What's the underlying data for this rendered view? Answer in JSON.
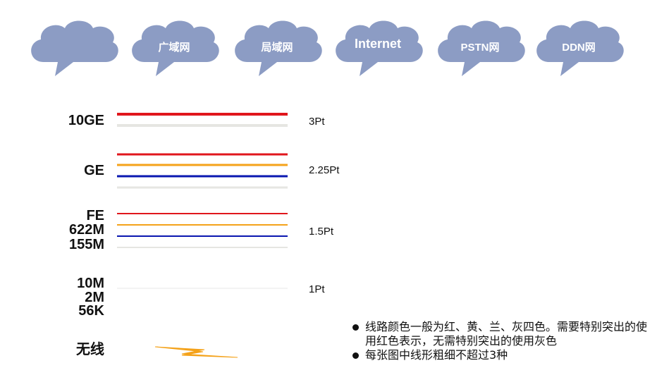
{
  "clouds": [
    {
      "label": "",
      "color": "#8c9cc4"
    },
    {
      "label": "广域网",
      "color": "#8c9cc4"
    },
    {
      "label": "局域网",
      "color": "#8c9cc4"
    },
    {
      "label": "Internet",
      "color": "#8c9cc4"
    },
    {
      "label": "PSTN网",
      "color": "#8c9cc4"
    },
    {
      "label": "DDN网",
      "color": "#8c9cc4"
    }
  ],
  "rows": [
    {
      "labels": [
        "10GE"
      ],
      "weight": "3Pt",
      "lines": [
        {
          "color_name": "red",
          "color": "#e0161c"
        },
        {
          "color_name": "gray",
          "color": "#e6e6e2"
        }
      ]
    },
    {
      "labels": [
        "GE"
      ],
      "weight": "2.25Pt",
      "lines": [
        {
          "color_name": "red",
          "color": "#e0161c"
        },
        {
          "color_name": "yellow",
          "color": "#f4a21a"
        },
        {
          "color_name": "blue",
          "color": "#0a17b0"
        },
        {
          "color_name": "gray",
          "color": "#e6e6e2"
        }
      ]
    },
    {
      "labels": [
        "FE",
        "622M",
        "155M"
      ],
      "weight": "1.5Pt",
      "lines": [
        {
          "color_name": "red",
          "color": "#e0161c"
        },
        {
          "color_name": "yellow",
          "color": "#f4a21a"
        },
        {
          "color_name": "blue",
          "color": "#0a17b0"
        },
        {
          "color_name": "gray",
          "color": "#e6e6e2"
        }
      ]
    },
    {
      "labels": [
        "10M",
        "2M",
        "56K"
      ],
      "weight": "1Pt",
      "lines": [
        {
          "color_name": "gray",
          "color": "#ececec"
        }
      ]
    },
    {
      "labels": [
        "无线"
      ],
      "weight": "",
      "lines": [
        {
          "color_name": "yellow",
          "color": "#f4a21a"
        }
      ]
    }
  ],
  "notes": [
    "线路颜色一般为红、黄、兰、灰四色。需要特别突出的使用红色表示，无需特别突出的使用灰色",
    "每张图中线形粗细不超过3种"
  ]
}
